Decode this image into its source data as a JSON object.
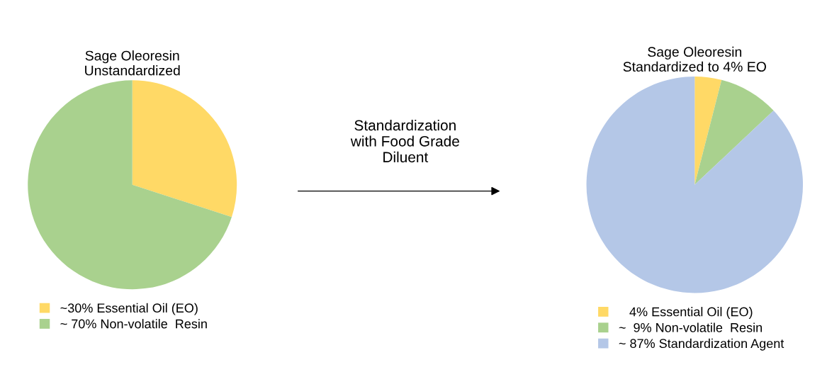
{
  "chart_data": [
    {
      "type": "pie",
      "title": "Sage Oleoresin\nUnstandardized",
      "categories": [
        "~30% Essential Oil (EO)",
        "~ 70% Non-volatile  Resin"
      ],
      "values": [
        30,
        70
      ],
      "colors": [
        "#ffd966",
        "#a9d18e"
      ],
      "legend": "bottom left"
    },
    {
      "type": "other",
      "annotations": [
        "Standardization\nwith Food Grade\nDiluent"
      ]
    },
    {
      "type": "pie",
      "title": "Sage Oleoresin\nStandardized to 4% EO",
      "categories": [
        "   4% Essential Oil (EO)",
        "~  9% Non-volatile  Resin",
        "~ 87% Standardization Agent"
      ],
      "values": [
        4,
        9,
        87
      ],
      "colors": [
        "#ffd966",
        "#a9d18e",
        "#b4c7e7"
      ],
      "legend": "bottom left"
    }
  ]
}
